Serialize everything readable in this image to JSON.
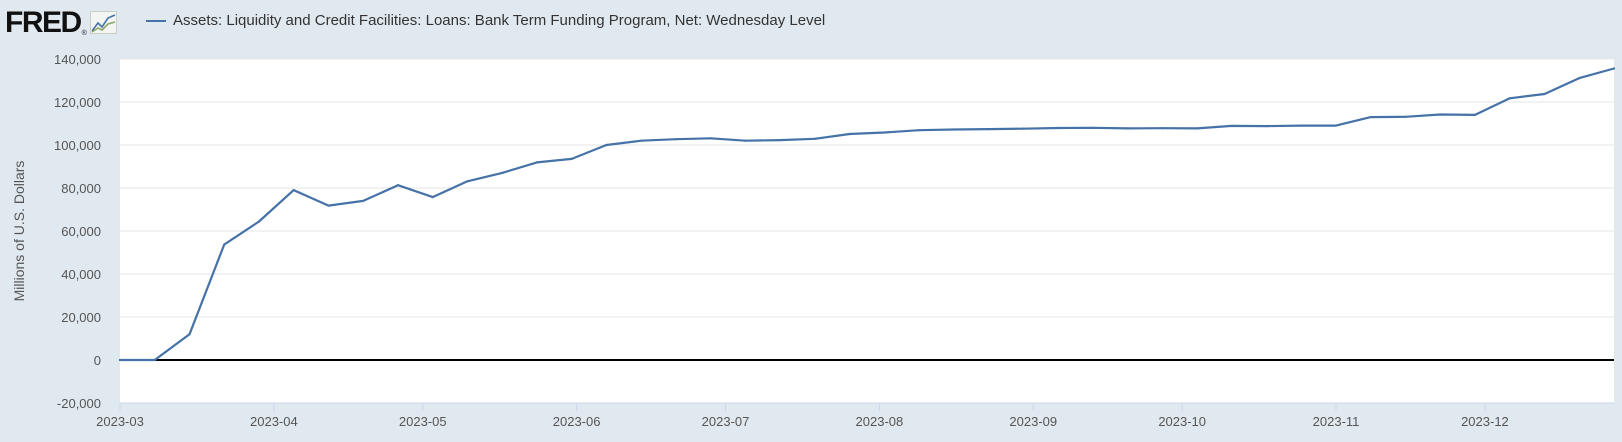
{
  "header": {
    "logo_text": "FRED",
    "logo_reg": "®",
    "logo_icon": "fred-chart-icon"
  },
  "colors": {
    "series": "#4572a7",
    "background": "#e1e9f0",
    "plot": "#ffffff",
    "grid": "#e6e6e6",
    "zero_line": "#000000"
  },
  "chart_data": {
    "type": "line",
    "title": "",
    "xlabel": "",
    "ylabel": "Millions of U.S. Dollars",
    "ylim": [
      -20000,
      140000
    ],
    "xlim": [
      "2023-03-01",
      "2023-12-27"
    ],
    "grid": true,
    "legend_position": "top-left",
    "y_ticks": [
      -20000,
      0,
      20000,
      40000,
      60000,
      80000,
      100000,
      120000,
      140000
    ],
    "y_tick_labels": [
      "-20,000",
      "0",
      "20,000",
      "40,000",
      "60,000",
      "80,000",
      "100,000",
      "120,000",
      "140,000"
    ],
    "x_ticks": [
      "2023-03-01",
      "2023-04-01",
      "2023-05-01",
      "2023-06-01",
      "2023-07-01",
      "2023-08-01",
      "2023-09-01",
      "2023-10-01",
      "2023-11-01",
      "2023-12-01"
    ],
    "x_tick_labels": [
      "2023-03",
      "2023-04",
      "2023-05",
      "2023-06",
      "2023-07",
      "2023-08",
      "2023-09",
      "2023-10",
      "2023-11",
      "2023-12"
    ],
    "series": [
      {
        "name": "Assets: Liquidity and Credit Facilities: Loans: Bank Term Funding Program, Net: Wednesday Level",
        "x": [
          "2023-03-01",
          "2023-03-08",
          "2023-03-15",
          "2023-03-22",
          "2023-03-29",
          "2023-04-05",
          "2023-04-12",
          "2023-04-19",
          "2023-04-26",
          "2023-05-03",
          "2023-05-10",
          "2023-05-17",
          "2023-05-24",
          "2023-05-31",
          "2023-06-07",
          "2023-06-14",
          "2023-06-21",
          "2023-06-28",
          "2023-07-05",
          "2023-07-12",
          "2023-07-19",
          "2023-07-26",
          "2023-08-02",
          "2023-08-09",
          "2023-08-16",
          "2023-08-23",
          "2023-08-30",
          "2023-09-06",
          "2023-09-13",
          "2023-09-20",
          "2023-09-27",
          "2023-10-04",
          "2023-10-11",
          "2023-10-18",
          "2023-10-25",
          "2023-11-01",
          "2023-11-08",
          "2023-11-15",
          "2023-11-22",
          "2023-11-29",
          "2023-12-06",
          "2023-12-13",
          "2023-12-20",
          "2023-12-27"
        ],
        "values": [
          0,
          0,
          11943,
          53670,
          64403,
          79021,
          71837,
          73981,
          81325,
          75779,
          83099,
          87018,
          91911,
          93554,
          100000,
          102000,
          102700,
          103100,
          102000,
          102300,
          102900,
          105100,
          105800,
          106900,
          107200,
          107400,
          107600,
          107900,
          108000,
          107700,
          107800,
          107700,
          108900,
          108800,
          109000,
          109000,
          113000,
          113100,
          114200,
          114000,
          121700,
          123700,
          131100,
          135600
        ]
      }
    ]
  }
}
